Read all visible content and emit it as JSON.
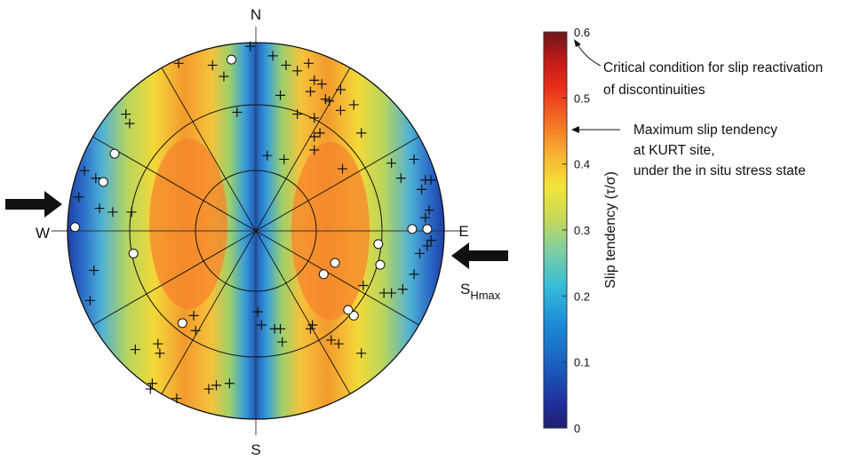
{
  "chart_data": {
    "type": "stereonet",
    "directions": {
      "north": "N",
      "south": "S",
      "east": "E",
      "west": "W"
    },
    "stress_label": {
      "main": "S",
      "sub": "Hmax"
    },
    "colorbar": {
      "label": "Slip tendency (τ/σ)",
      "min": 0,
      "max": 0.6,
      "ticks": [
        "0",
        "0.1",
        "0.2",
        "0.3",
        "0.4",
        "0.5",
        "0.6"
      ],
      "tick_values": [
        0,
        0.1,
        0.2,
        0.3,
        0.4,
        0.5,
        0.6
      ]
    },
    "annotations": [
      {
        "lines": [
          "Critical condition for slip reactivation",
          "of discontinuities"
        ],
        "value": 0.6
      },
      {
        "lines": [
          "Maximum slip tendency",
          "at KURT site,",
          "under the in situ stress state"
        ],
        "value": 0.45
      }
    ],
    "circles_poles": [
      [
        -0.13,
        0.91
      ],
      [
        -0.75,
        0.41
      ],
      [
        -0.81,
        0.26
      ],
      [
        -0.96,
        0.02
      ],
      [
        -0.65,
        -0.12
      ],
      [
        -0.39,
        -0.49
      ],
      [
        0.42,
        -0.17
      ],
      [
        0.36,
        -0.23
      ],
      [
        0.65,
        -0.07
      ],
      [
        0.66,
        -0.18
      ],
      [
        0.83,
        0.01
      ],
      [
        0.91,
        0.01
      ],
      [
        0.52,
        -0.45
      ],
      [
        0.49,
        -0.42
      ]
    ],
    "cross_poles": [
      [
        -0.41,
        0.89
      ],
      [
        -0.23,
        0.88
      ],
      [
        -0.17,
        0.82
      ],
      [
        -0.03,
        0.98
      ],
      [
        0.09,
        0.93
      ],
      [
        0.16,
        0.88
      ],
      [
        0.22,
        0.85
      ],
      [
        0.28,
        0.89
      ],
      [
        0.31,
        0.8
      ],
      [
        0.29,
        0.74
      ],
      [
        0.35,
        0.78
      ],
      [
        0.37,
        0.7
      ],
      [
        0.45,
        0.75
      ],
      [
        0.52,
        0.67
      ],
      [
        0.22,
        0.62
      ],
      [
        0.13,
        0.72
      ],
      [
        0.31,
        0.6
      ],
      [
        0.45,
        0.64
      ],
      [
        -0.1,
        0.63
      ],
      [
        0.06,
        0.4
      ],
      [
        0.15,
        0.38
      ],
      [
        0.31,
        0.43
      ],
      [
        0.31,
        0.5
      ],
      [
        0.34,
        0.52
      ],
      [
        0.39,
        0.69
      ],
      [
        -0.69,
        0.62
      ],
      [
        -0.67,
        0.57
      ],
      [
        -0.91,
        0.32
      ],
      [
        -0.94,
        0.18
      ],
      [
        -0.85,
        0.28
      ],
      [
        -0.76,
        0.1
      ],
      [
        -0.83,
        0.12
      ],
      [
        -0.66,
        0.1
      ],
      [
        -0.86,
        -0.21
      ],
      [
        -0.88,
        -0.37
      ],
      [
        -0.64,
        -0.63
      ],
      [
        -0.51,
        -0.65
      ],
      [
        -0.52,
        -0.6
      ],
      [
        -0.55,
        -0.81
      ],
      [
        -0.56,
        -0.84
      ],
      [
        -0.42,
        -0.89
      ],
      [
        -0.25,
        -0.84
      ],
      [
        -0.21,
        -0.82
      ],
      [
        -0.14,
        -0.81
      ],
      [
        -0.33,
        -0.45
      ],
      [
        -0.32,
        -0.53
      ],
      [
        0.01,
        -0.43
      ],
      [
        0.03,
        -0.5
      ],
      [
        0.1,
        -0.52
      ],
      [
        0.13,
        -0.52
      ],
      [
        0.14,
        -0.59
      ],
      [
        0.29,
        -0.52
      ],
      [
        0.3,
        -0.5
      ],
      [
        0.4,
        -0.58
      ],
      [
        0.44,
        -0.6
      ],
      [
        0.56,
        -0.65
      ],
      [
        0.57,
        -0.29
      ],
      [
        0.68,
        -0.33
      ],
      [
        0.72,
        -0.33
      ],
      [
        0.78,
        -0.31
      ],
      [
        0.84,
        -0.23
      ],
      [
        0.87,
        -0.12
      ],
      [
        0.91,
        -0.08
      ],
      [
        0.93,
        -0.05
      ],
      [
        0.92,
        0.11
      ],
      [
        0.88,
        0.22
      ],
      [
        0.9,
        0.27
      ],
      [
        0.93,
        0.27
      ],
      [
        0.77,
        0.28
      ],
      [
        0.72,
        0.36
      ],
      [
        0.56,
        0.52
      ],
      [
        0.84,
        0.38
      ],
      [
        0.9,
        0.07
      ],
      [
        0.46,
        0.33
      ]
    ]
  }
}
